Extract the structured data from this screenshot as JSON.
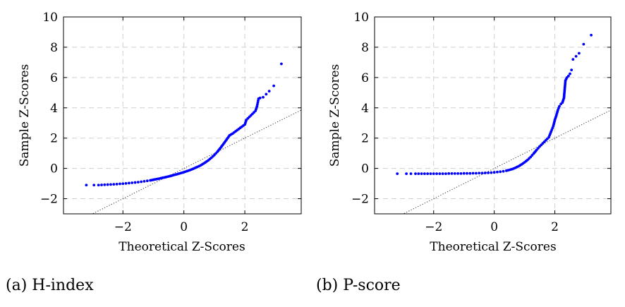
{
  "chart_data": [
    {
      "type": "scatter",
      "caption": "(a) H-index",
      "xlabel": "Theoretical Z-Scores",
      "ylabel": "Sample Z-Scores",
      "xlim": [
        -3.95,
        3.85
      ],
      "ylim": [
        -3.0,
        10.0
      ],
      "xticks": [
        -2,
        0,
        2
      ],
      "xtick_labels": [
        "−2",
        "0",
        "2"
      ],
      "yticks": [
        -2,
        0,
        2,
        4,
        6,
        8,
        10
      ],
      "ytick_labels": [
        "−2",
        "0",
        "2",
        "4",
        "6",
        "8",
        "10"
      ],
      "grid": true,
      "reference_line": {
        "slope": 1,
        "intercept": 0,
        "style": "dotted"
      },
      "marker_color": "#0000ff",
      "series": [
        {
          "x": [
            -3.2,
            -2.95,
            -2.8,
            -2.7,
            -2.6,
            -2.5,
            -2.4,
            -2.3,
            -2.2,
            -2.1,
            -2.0,
            -1.9,
            -1.8,
            -1.7,
            -1.6,
            -1.5,
            -1.4,
            -1.3,
            -1.2,
            -1.1,
            -1.0,
            -0.9,
            -0.8,
            -0.7,
            -0.6,
            -0.5,
            -0.4,
            -0.3,
            -0.2,
            -0.1,
            0.0,
            0.1,
            0.2,
            0.3,
            0.4,
            0.5,
            0.6,
            0.7,
            0.8,
            0.9,
            1.0,
            1.1,
            1.2,
            1.3,
            1.4,
            1.5,
            1.6,
            1.7,
            1.8,
            1.9,
            2.0,
            2.05,
            2.1,
            2.15,
            2.2,
            2.25,
            2.3,
            2.35,
            2.4,
            2.45,
            2.5,
            2.6,
            2.7,
            2.8,
            2.95,
            3.2
          ],
          "y": [
            -1.1,
            -1.1,
            -1.1,
            -1.09,
            -1.08,
            -1.07,
            -1.06,
            -1.05,
            -1.04,
            -1.02,
            -1.01,
            -0.99,
            -0.97,
            -0.95,
            -0.93,
            -0.91,
            -0.88,
            -0.85,
            -0.82,
            -0.79,
            -0.75,
            -0.71,
            -0.67,
            -0.62,
            -0.58,
            -0.53,
            -0.48,
            -0.42,
            -0.37,
            -0.31,
            -0.25,
            -0.18,
            -0.11,
            -0.03,
            0.06,
            0.15,
            0.26,
            0.39,
            0.53,
            0.7,
            0.88,
            1.1,
            1.35,
            1.62,
            1.9,
            2.18,
            2.3,
            2.45,
            2.6,
            2.75,
            2.9,
            3.2,
            3.3,
            3.4,
            3.5,
            3.6,
            3.7,
            3.8,
            4.1,
            4.6,
            4.65,
            4.7,
            4.9,
            5.1,
            5.45,
            6.9
          ]
        }
      ]
    },
    {
      "type": "scatter",
      "caption": "(b) P-score",
      "xlabel": "Theoretical Z-Scores",
      "ylabel": "Sample Z-Scores",
      "xlim": [
        -3.95,
        3.85
      ],
      "ylim": [
        -3.0,
        10.0
      ],
      "xticks": [
        -2,
        0,
        2
      ],
      "xtick_labels": [
        "−2",
        "0",
        "2"
      ],
      "yticks": [
        -2,
        0,
        2,
        4,
        6,
        8,
        10
      ],
      "ytick_labels": [
        "−2",
        "0",
        "2",
        "4",
        "6",
        "8",
        "10"
      ],
      "grid": true,
      "reference_line": {
        "slope": 1,
        "intercept": 0,
        "style": "dotted"
      },
      "marker_color": "#0000ff",
      "series": [
        {
          "x": [
            -3.2,
            -2.9,
            -2.75,
            -2.6,
            -2.5,
            -2.4,
            -2.3,
            -2.2,
            -2.1,
            -2.0,
            -1.9,
            -1.8,
            -1.7,
            -1.6,
            -1.5,
            -1.4,
            -1.3,
            -1.2,
            -1.1,
            -1.0,
            -0.9,
            -0.8,
            -0.7,
            -0.6,
            -0.5,
            -0.4,
            -0.3,
            -0.2,
            -0.1,
            0.0,
            0.1,
            0.2,
            0.3,
            0.4,
            0.5,
            0.6,
            0.7,
            0.8,
            0.9,
            1.0,
            1.1,
            1.2,
            1.3,
            1.4,
            1.5,
            1.6,
            1.7,
            1.8,
            1.85,
            1.9,
            1.95,
            2.0,
            2.05,
            2.1,
            2.15,
            2.2,
            2.25,
            2.3,
            2.35,
            2.4,
            2.45,
            2.5,
            2.55,
            2.6,
            2.7,
            2.8,
            2.95,
            3.2
          ],
          "y": [
            -0.35,
            -0.35,
            -0.35,
            -0.35,
            -0.35,
            -0.35,
            -0.35,
            -0.35,
            -0.35,
            -0.35,
            -0.35,
            -0.35,
            -0.35,
            -0.35,
            -0.34,
            -0.34,
            -0.34,
            -0.34,
            -0.34,
            -0.33,
            -0.33,
            -0.33,
            -0.32,
            -0.32,
            -0.31,
            -0.31,
            -0.3,
            -0.29,
            -0.28,
            -0.26,
            -0.24,
            -0.22,
            -0.19,
            -0.15,
            -0.1,
            -0.04,
            0.04,
            0.14,
            0.26,
            0.4,
            0.56,
            0.75,
            0.98,
            1.22,
            1.45,
            1.65,
            1.85,
            2.05,
            2.3,
            2.55,
            2.8,
            3.2,
            3.5,
            3.85,
            4.1,
            4.25,
            4.35,
            4.65,
            5.8,
            6.0,
            6.1,
            6.25,
            6.5,
            7.2,
            7.4,
            7.6,
            8.2,
            8.8
          ]
        }
      ]
    }
  ]
}
